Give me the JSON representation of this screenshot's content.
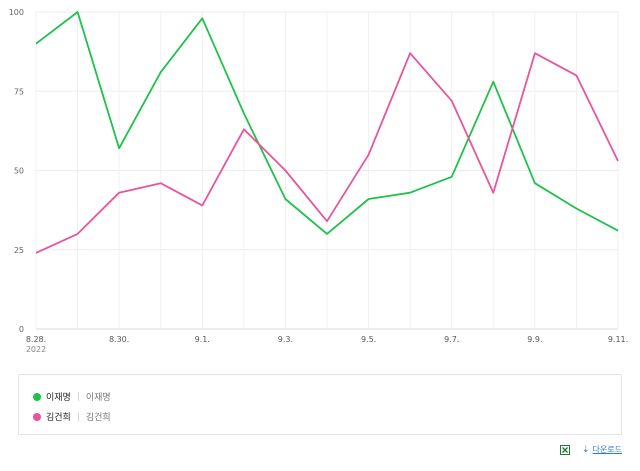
{
  "chart_data": {
    "type": "line",
    "categories": [
      "8.28.",
      "8.29.",
      "8.30.",
      "8.31.",
      "9.1.",
      "9.2.",
      "9.3.",
      "9.4.",
      "9.5.",
      "9.6.",
      "9.7.",
      "9.8.",
      "9.9.",
      "9.10.",
      "9.11."
    ],
    "x_tick_labels": [
      "8.28.",
      "8.30.",
      "9.1.",
      "9.3.",
      "9.5.",
      "9.7.",
      "9.9.",
      "9.11."
    ],
    "x_sub_label": "2022",
    "y_ticks": [
      {
        "value": 0,
        "label": "0"
      },
      {
        "value": 25,
        "label": "25"
      },
      {
        "value": 50,
        "label": "50"
      },
      {
        "value": 75,
        "label": "75"
      },
      {
        "value": 100,
        "label": "100"
      }
    ],
    "ylim": [
      0,
      100
    ],
    "grid": true,
    "legend_position": "bottom",
    "series": [
      {
        "name": "이재명",
        "color": "#1ec24b",
        "values": [
          90,
          100,
          57,
          81,
          98,
          68,
          41,
          30,
          41,
          43,
          48,
          78,
          46,
          38,
          31
        ]
      },
      {
        "name": "김건희",
        "color": "#e8559a",
        "values": [
          24,
          30,
          43,
          46,
          39,
          63,
          50,
          34,
          55,
          87,
          72,
          43,
          87,
          80,
          53
        ]
      }
    ]
  },
  "legend": {
    "items": [
      {
        "name": "이재명",
        "sub": "이재명",
        "color": "#1ec24b"
      },
      {
        "name": "김건희",
        "sub": "김건희",
        "color": "#e8559a"
      }
    ]
  },
  "footer": {
    "download_label": "다운로드",
    "excel_icon": "excel-icon",
    "download_icon": "download-icon"
  }
}
